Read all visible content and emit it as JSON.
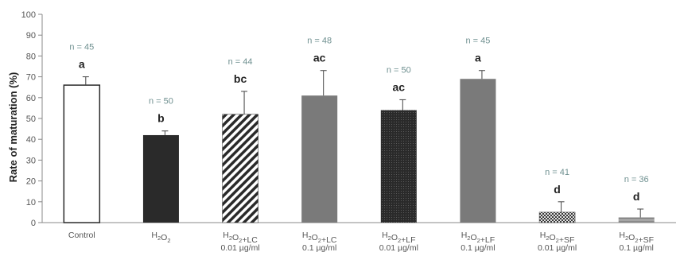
{
  "chart_data": {
    "type": "bar",
    "ylabel": "Rate of maturation (%)",
    "ylim": [
      0,
      100
    ],
    "yticks": [
      0,
      10,
      20,
      30,
      40,
      50,
      60,
      70,
      80,
      90,
      100
    ],
    "grid": false,
    "categories": [
      {
        "lines": [
          "Control"
        ]
      },
      {
        "lines": [
          "H2O2"
        ]
      },
      {
        "lines": [
          "H2O2+LC",
          "0.01 µg/ml"
        ]
      },
      {
        "lines": [
          "H2O2+LC",
          "0.1 µg/ml"
        ]
      },
      {
        "lines": [
          "H2O2+LF",
          "0.01 µg/ml"
        ]
      },
      {
        "lines": [
          "H2O2+LF",
          "0.1 µg/ml"
        ]
      },
      {
        "lines": [
          "H2O2+SF",
          "0.01 µg/ml"
        ]
      },
      {
        "lines": [
          "H2O2+SF",
          "0.1 µg/ml"
        ]
      }
    ],
    "values": [
      66,
      42,
      52,
      61,
      54,
      69,
      5,
      2.5
    ],
    "errors": [
      4,
      2,
      11,
      12,
      5,
      4,
      5,
      4
    ],
    "n_labels": [
      "n = 45",
      "n = 50",
      "n = 44",
      "n = 48",
      "n = 50",
      "n = 45",
      "n = 41",
      "n = 36"
    ],
    "significance": [
      "a",
      "b",
      "bc",
      "ac",
      "ac",
      "a",
      "d",
      "d"
    ],
    "bar_styles": [
      "hollow",
      "dark",
      "diagonal-hatch",
      "gray",
      "dark-dotted",
      "gray",
      "checker",
      "light-hatch"
    ],
    "colors": {
      "dark": "#2a2a2a",
      "gray": "#7a7a7a",
      "axis": "#888888",
      "n_label": "#6f9090"
    }
  }
}
